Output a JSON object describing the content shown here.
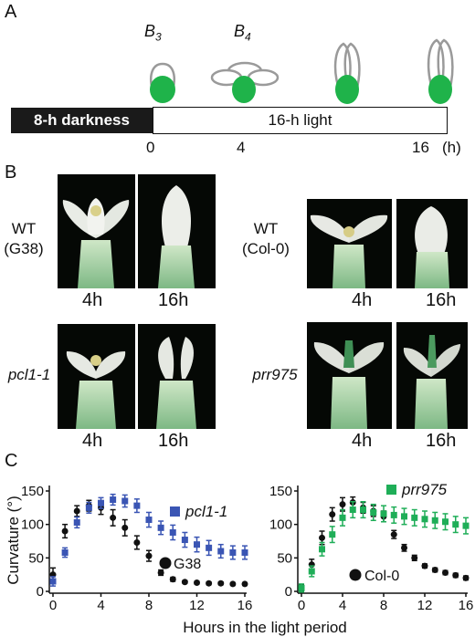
{
  "panel_a": {
    "letter": "A",
    "stage_b3": "B",
    "stage_b3_sub": "3",
    "stage_b4": "B",
    "stage_b4_sub": "4",
    "dark_label": "8-h darkness",
    "light_label": "16-h light",
    "ticks": [
      "0",
      "4",
      "16"
    ],
    "unit": "(h)",
    "colors": {
      "bud": "#1fb34a",
      "petal": "#9a9a9a",
      "dark_bar": "#1a1a1a"
    }
  },
  "panel_b": {
    "letter": "B",
    "wt_g38_line1": "WT",
    "wt_g38_line2": "(G38)",
    "wt_col_line1": "WT",
    "wt_col_line2": "(Col-0)",
    "pcl": "pcl1-1",
    "prr": "prr975",
    "t4": "4h",
    "t16": "16h"
  },
  "panel_c": {
    "letter": "C"
  },
  "chart_data": [
    {
      "type": "scatter",
      "ylabel": "Curvature (°)",
      "xlabel": "Hours in the light period",
      "xlim": [
        0,
        16
      ],
      "ylim": [
        0,
        150
      ],
      "xticks": [
        0,
        4,
        8,
        12,
        16
      ],
      "yticks": [
        0,
        50,
        100,
        150
      ],
      "series": [
        {
          "name": "pcl1-1",
          "color": "#3a55b4",
          "marker": "square",
          "x": [
            0,
            1,
            2,
            3,
            4,
            5,
            6,
            7,
            8,
            9,
            10,
            11,
            12,
            13,
            14,
            15,
            16
          ],
          "y": [
            15,
            58,
            103,
            125,
            132,
            137,
            135,
            128,
            107,
            95,
            88,
            77,
            70,
            65,
            60,
            58,
            58
          ],
          "err": [
            7,
            7,
            8,
            8,
            8,
            8,
            9,
            10,
            11,
            10,
            11,
            11,
            11,
            11,
            10,
            10,
            10
          ]
        },
        {
          "name": "G38",
          "color": "#111111",
          "marker": "circle",
          "x": [
            0,
            1,
            2,
            3,
            4,
            5,
            6,
            7,
            8,
            9,
            10,
            11,
            12,
            13,
            14,
            15,
            16
          ],
          "y": [
            25,
            90,
            120,
            128,
            125,
            110,
            95,
            73,
            53,
            28,
            18,
            14,
            13,
            12,
            12,
            11,
            11
          ],
          "err": [
            10,
            10,
            8,
            8,
            10,
            12,
            12,
            10,
            8,
            4,
            3,
            2,
            2,
            2,
            2,
            2,
            2
          ]
        }
      ]
    },
    {
      "type": "scatter",
      "ylabel": "",
      "xlabel": "Hours in the light period",
      "xlim": [
        0,
        16
      ],
      "ylim": [
        0,
        150
      ],
      "xticks": [
        0,
        4,
        8,
        12,
        16
      ],
      "yticks": [
        0,
        50,
        100,
        150
      ],
      "series": [
        {
          "name": "prr975",
          "color": "#1fae58",
          "marker": "square",
          "x": [
            0,
            1,
            2,
            3,
            4,
            5,
            6,
            7,
            8,
            9,
            10,
            11,
            12,
            13,
            14,
            15,
            16
          ],
          "y": [
            5,
            30,
            63,
            85,
            110,
            122,
            122,
            118,
            116,
            114,
            112,
            110,
            108,
            106,
            104,
            100,
            98
          ],
          "err": [
            6,
            8,
            10,
            12,
            12,
            12,
            12,
            12,
            12,
            12,
            12,
            12,
            12,
            12,
            12,
            12,
            12
          ]
        },
        {
          "name": "Col-0",
          "color": "#111111",
          "marker": "circle",
          "x": [
            0,
            1,
            2,
            3,
            4,
            5,
            6,
            7,
            8,
            9,
            10,
            11,
            12,
            13,
            14,
            15,
            16
          ],
          "y": [
            5,
            40,
            80,
            115,
            130,
            133,
            125,
            120,
            112,
            85,
            65,
            50,
            38,
            32,
            28,
            24,
            20
          ],
          "err": [
            5,
            8,
            10,
            10,
            10,
            8,
            8,
            8,
            8,
            6,
            5,
            4,
            3,
            3,
            3,
            3,
            3
          ]
        }
      ]
    }
  ]
}
